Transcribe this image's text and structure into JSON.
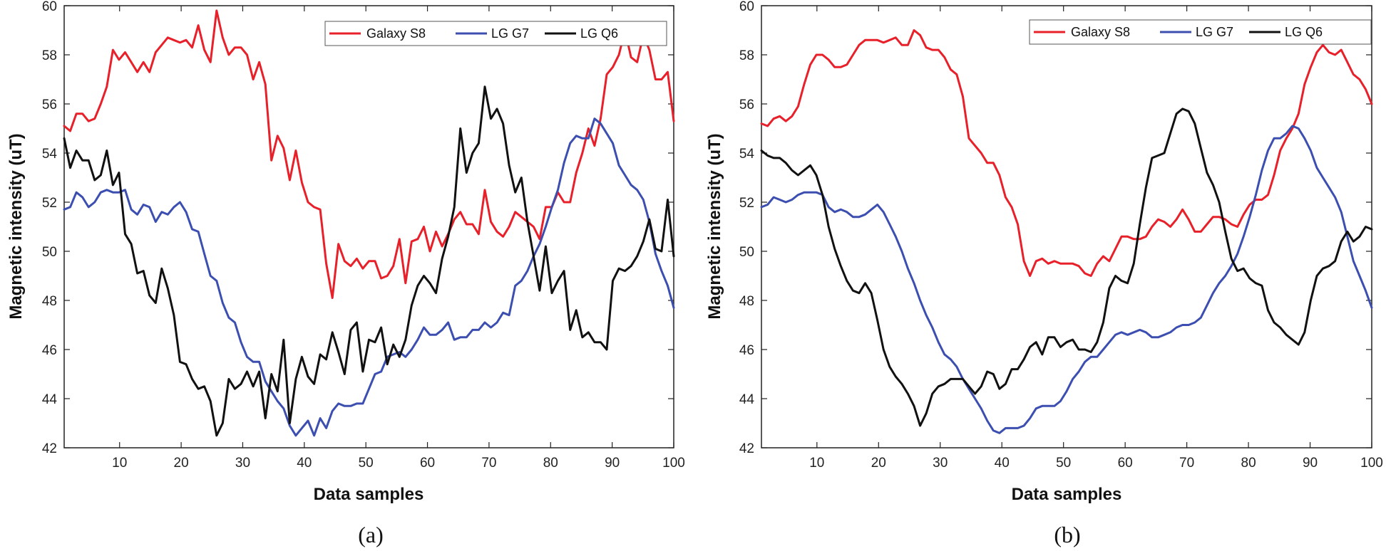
{
  "colors": {
    "galaxy_s8": "#e8202a",
    "lg_g7": "#3c4fb0",
    "lg_q6": "#111111"
  },
  "chart_data": [
    {
      "type": "line",
      "panel": "(a)",
      "xlabel": "Data samples",
      "ylabel": "Magnetic intensity (uT)",
      "xlim": [
        1,
        100
      ],
      "ylim": [
        42,
        60
      ],
      "xticks": [
        10,
        20,
        30,
        40,
        50,
        60,
        70,
        80,
        90,
        100
      ],
      "yticks": [
        42,
        44,
        46,
        48,
        50,
        52,
        54,
        56,
        58,
        60
      ],
      "legend_position": "top-right",
      "series": [
        {
          "name": "Galaxy S8",
          "color_key": "galaxy_s8",
          "values": [
            55.1,
            54.9,
            55.6,
            55.6,
            55.3,
            55.4,
            56.0,
            56.7,
            58.2,
            57.8,
            58.1,
            57.7,
            57.3,
            57.7,
            57.3,
            58.1,
            58.4,
            58.7,
            58.6,
            58.5,
            58.6,
            58.3,
            59.2,
            58.2,
            57.7,
            59.8,
            58.7,
            58.0,
            58.3,
            58.3,
            58.0,
            57.0,
            57.7,
            56.8,
            53.7,
            54.7,
            54.2,
            52.9,
            54.1,
            52.8,
            52.0,
            51.8,
            51.7,
            49.5,
            48.1,
            50.3,
            49.6,
            49.4,
            49.7,
            49.3,
            49.6,
            49.6,
            48.9,
            49.0,
            49.4,
            50.5,
            48.7,
            50.4,
            50.5,
            51.0,
            50.0,
            50.8,
            50.2,
            50.7,
            51.3,
            51.6,
            51.1,
            51.1,
            50.7,
            52.5,
            51.2,
            50.8,
            50.6,
            51.0,
            51.6,
            51.4,
            51.2,
            51.0,
            50.5,
            51.8,
            51.8,
            52.4,
            52.0,
            52.0,
            53.2,
            54.0,
            55.0,
            54.3,
            55.4,
            57.2,
            57.5,
            58.0,
            59.0,
            57.9,
            57.7,
            58.8,
            58.2,
            57.0,
            57.0,
            57.3,
            55.3
          ]
        },
        {
          "name": "LG G7",
          "color_key": "lg_g7",
          "values": [
            51.7,
            51.8,
            52.4,
            52.2,
            51.8,
            52.0,
            52.4,
            52.5,
            52.4,
            52.4,
            52.5,
            51.7,
            51.5,
            51.9,
            51.8,
            51.2,
            51.6,
            51.5,
            51.8,
            52.0,
            51.6,
            50.9,
            50.8,
            49.9,
            49.0,
            48.8,
            47.9,
            47.3,
            47.1,
            46.3,
            45.7,
            45.5,
            45.5,
            44.7,
            44.3,
            43.9,
            43.6,
            42.9,
            42.5,
            42.8,
            43.1,
            42.5,
            43.2,
            42.8,
            43.5,
            43.8,
            43.7,
            43.7,
            43.8,
            43.8,
            44.4,
            45.0,
            45.1,
            45.7,
            45.8,
            45.9,
            45.7,
            46.0,
            46.4,
            46.9,
            46.6,
            46.6,
            46.8,
            47.1,
            46.4,
            46.5,
            46.5,
            46.8,
            46.8,
            47.1,
            46.9,
            47.1,
            47.5,
            47.4,
            48.6,
            48.8,
            49.2,
            49.8,
            50.3,
            51.0,
            51.8,
            52.5,
            53.6,
            54.4,
            54.7,
            54.6,
            54.6,
            55.4,
            55.2,
            54.8,
            54.4,
            53.5,
            53.1,
            52.7,
            52.5,
            52.1,
            51.2,
            49.9,
            49.2,
            48.6,
            47.7
          ]
        },
        {
          "name": "LG Q6",
          "color_key": "lg_q6",
          "values": [
            54.6,
            53.4,
            54.1,
            53.7,
            53.7,
            52.9,
            53.1,
            54.1,
            52.7,
            53.2,
            50.7,
            50.3,
            49.1,
            49.2,
            48.2,
            47.9,
            49.3,
            48.5,
            47.4,
            45.5,
            45.4,
            44.8,
            44.4,
            44.5,
            43.9,
            42.5,
            43.0,
            44.8,
            44.4,
            44.6,
            45.1,
            44.5,
            45.1,
            43.2,
            45.0,
            44.3,
            46.4,
            43.0,
            44.8,
            45.7,
            44.9,
            44.6,
            45.8,
            45.6,
            46.7,
            45.9,
            45.0,
            46.8,
            47.1,
            45.1,
            46.4,
            46.3,
            46.9,
            45.4,
            46.2,
            45.7,
            46.4,
            47.8,
            48.6,
            49.0,
            48.7,
            48.3,
            49.7,
            50.6,
            51.8,
            55.0,
            53.2,
            54.0,
            54.4,
            56.7,
            55.4,
            55.8,
            55.2,
            53.5,
            52.4,
            53.0,
            51.2,
            49.8,
            48.4,
            50.2,
            48.3,
            48.8,
            49.2,
            46.8,
            47.6,
            46.5,
            46.7,
            46.3,
            46.3,
            46.0,
            48.8,
            49.3,
            49.2,
            49.4,
            49.8,
            50.4,
            51.3,
            50.1,
            50.0,
            52.1,
            49.8
          ]
        }
      ]
    },
    {
      "type": "line",
      "panel": "(b)",
      "xlabel": "Data samples",
      "ylabel": "Magnetic intensity (uT)",
      "xlim": [
        1,
        100
      ],
      "ylim": [
        42,
        60
      ],
      "xticks": [
        10,
        20,
        30,
        40,
        50,
        60,
        70,
        80,
        90,
        100
      ],
      "yticks": [
        42,
        44,
        46,
        48,
        50,
        52,
        54,
        56,
        58,
        60
      ],
      "legend_position": "top-right",
      "series": [
        {
          "name": "Galaxy S8",
          "color_key": "galaxy_s8",
          "values": [
            55.2,
            55.1,
            55.4,
            55.5,
            55.3,
            55.5,
            55.9,
            56.8,
            57.6,
            58.0,
            58.0,
            57.8,
            57.5,
            57.5,
            57.6,
            58.0,
            58.4,
            58.6,
            58.6,
            58.6,
            58.5,
            58.6,
            58.7,
            58.4,
            58.4,
            59.0,
            58.8,
            58.3,
            58.2,
            58.2,
            57.9,
            57.4,
            57.2,
            56.3,
            54.6,
            54.3,
            54.0,
            53.6,
            53.6,
            53.1,
            52.2,
            51.8,
            51.1,
            49.6,
            49.0,
            49.6,
            49.7,
            49.5,
            49.6,
            49.5,
            49.5,
            49.5,
            49.4,
            49.1,
            49.0,
            49.5,
            49.8,
            49.6,
            50.1,
            50.6,
            50.6,
            50.5,
            50.5,
            50.6,
            51.0,
            51.3,
            51.2,
            51.0,
            51.3,
            51.7,
            51.3,
            50.8,
            50.8,
            51.1,
            51.4,
            51.4,
            51.3,
            51.1,
            51.0,
            51.5,
            51.9,
            52.1,
            52.1,
            52.3,
            53.1,
            54.1,
            54.6,
            55.0,
            55.6,
            56.8,
            57.5,
            58.1,
            58.4,
            58.1,
            58.0,
            58.2,
            57.7,
            57.2,
            57.0,
            56.6,
            56.0
          ]
        },
        {
          "name": "LG G7",
          "color_key": "lg_g7",
          "values": [
            51.8,
            51.9,
            52.2,
            52.1,
            52.0,
            52.1,
            52.3,
            52.4,
            52.4,
            52.4,
            52.3,
            51.8,
            51.6,
            51.7,
            51.6,
            51.4,
            51.4,
            51.5,
            51.7,
            51.9,
            51.6,
            51.1,
            50.6,
            50.0,
            49.3,
            48.7,
            48.0,
            47.4,
            46.9,
            46.3,
            45.8,
            45.6,
            45.3,
            44.8,
            44.4,
            44.0,
            43.6,
            43.1,
            42.7,
            42.6,
            42.8,
            42.8,
            42.8,
            42.9,
            43.2,
            43.6,
            43.7,
            43.7,
            43.7,
            43.9,
            44.3,
            44.8,
            45.1,
            45.5,
            45.7,
            45.7,
            46.0,
            46.3,
            46.6,
            46.7,
            46.6,
            46.7,
            46.8,
            46.7,
            46.5,
            46.5,
            46.6,
            46.7,
            46.9,
            47.0,
            47.0,
            47.1,
            47.3,
            47.8,
            48.3,
            48.7,
            49.0,
            49.4,
            49.9,
            50.6,
            51.4,
            52.3,
            53.3,
            54.1,
            54.6,
            54.6,
            54.8,
            55.1,
            55.0,
            54.6,
            54.1,
            53.4,
            53.0,
            52.6,
            52.2,
            51.6,
            50.6,
            49.6,
            49.0,
            48.4,
            47.7
          ]
        },
        {
          "name": "LG Q6",
          "color_key": "lg_q6",
          "values": [
            54.1,
            53.9,
            53.8,
            53.8,
            53.6,
            53.3,
            53.1,
            53.3,
            53.5,
            53.1,
            52.3,
            51.0,
            50.1,
            49.4,
            48.8,
            48.4,
            48.3,
            48.7,
            48.3,
            47.2,
            46.0,
            45.3,
            44.9,
            44.6,
            44.2,
            43.7,
            42.9,
            43.4,
            44.2,
            44.5,
            44.6,
            44.8,
            44.8,
            44.8,
            44.5,
            44.2,
            44.5,
            45.1,
            45.0,
            44.4,
            44.6,
            45.2,
            45.2,
            45.6,
            46.1,
            46.3,
            45.8,
            46.5,
            46.5,
            46.1,
            46.3,
            46.4,
            46.0,
            46.0,
            45.9,
            46.3,
            47.1,
            48.5,
            49.0,
            48.8,
            48.7,
            49.5,
            51.1,
            52.6,
            53.8,
            53.9,
            54.0,
            54.8,
            55.6,
            55.8,
            55.7,
            55.2,
            54.2,
            53.2,
            52.7,
            52.0,
            50.8,
            49.7,
            49.2,
            49.3,
            48.9,
            48.7,
            48.6,
            47.6,
            47.1,
            46.9,
            46.6,
            46.4,
            46.2,
            46.7,
            48.0,
            49.0,
            49.3,
            49.4,
            49.6,
            50.4,
            50.8,
            50.4,
            50.6,
            51.0,
            50.9
          ]
        }
      ]
    }
  ]
}
